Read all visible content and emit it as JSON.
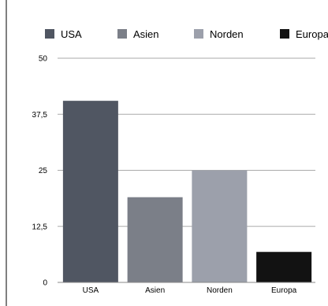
{
  "chart_data": {
    "type": "bar",
    "title": "",
    "xlabel": "",
    "ylabel": "",
    "categories": [
      "USA",
      "Asien",
      "Norden",
      "Europa"
    ],
    "values": [
      40.5,
      19,
      25,
      6.8
    ],
    "ylim": [
      0,
      50
    ],
    "yticks": [
      0,
      12.5,
      25,
      37.5,
      50
    ],
    "ytick_labels": [
      "0",
      "12,5",
      "25",
      "37,5",
      "50"
    ],
    "colors": [
      "#505662",
      "#7b7f88",
      "#9ca0ab",
      "#121212"
    ],
    "legend": {
      "placement": "top",
      "entries": [
        "USA",
        "Asien",
        "Norden",
        "Europa"
      ]
    },
    "grid": true
  }
}
